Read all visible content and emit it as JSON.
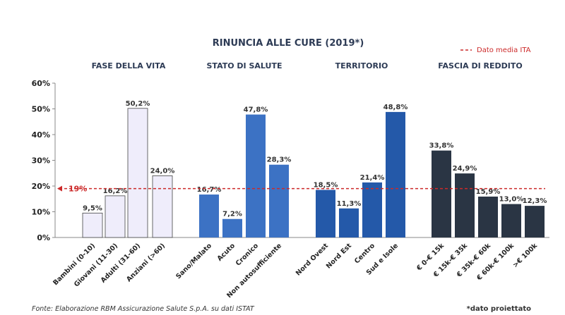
{
  "chart_data": {
    "type": "bar",
    "title": "RINUNCIA ALLE CURE (2019*)",
    "legend": {
      "label": "Dato media ITA",
      "placement": "top-right",
      "style": "dashed-red-line"
    },
    "reference_line": {
      "value": 19,
      "label": "19%",
      "color": "#cc2a2a"
    },
    "ylim": [
      0,
      60
    ],
    "yticks": [
      "0%",
      "10%",
      "20%",
      "30%",
      "40%",
      "50%",
      "60%"
    ],
    "unit": "%",
    "groups": [
      {
        "name": "FASE DELLA VITA",
        "color": "#efedfb",
        "categories": [
          "Bambini (0-10)",
          "Giovani (11-30)",
          "Adulti (31-60)",
          "Anziani (>60)"
        ],
        "values": [
          9.5,
          16.2,
          50.2,
          24.0
        ],
        "labels": [
          "9,5%",
          "16,2%",
          "50,2%",
          "24,0%"
        ]
      },
      {
        "name": "STATO DI SALUTE",
        "color": "#3c72c4",
        "categories": [
          "Sano/Malato",
          "Acuto",
          "Cronico",
          "Non autosufficiente"
        ],
        "values": [
          16.7,
          7.2,
          47.8,
          28.3
        ],
        "labels": [
          "16,7%",
          "7,2%",
          "47,8%",
          "28,3%"
        ]
      },
      {
        "name": "TERRITORIO",
        "color": "#2459a9",
        "categories": [
          "Nord Ovest",
          "Nord Est",
          "Centro",
          "Sud e Isole"
        ],
        "values": [
          18.5,
          11.3,
          21.4,
          48.8
        ],
        "labels": [
          "18,5%",
          "11,3%",
          "21,4%",
          "48,8%"
        ]
      },
      {
        "name": "FASCIA DI REDDITO",
        "color": "#2a3544",
        "categories": [
          "€ 0-€ 15k",
          "€ 15k-€ 35k",
          "€ 35k-€ 60k",
          "€ 60k-€ 100k",
          ">€ 100k"
        ],
        "values": [
          33.8,
          24.9,
          15.9,
          13.0,
          12.3
        ],
        "labels": [
          "33,8%",
          "24,9%",
          "15,9%",
          "13,0%",
          "12,3%"
        ]
      }
    ]
  },
  "footer": {
    "source": "Fonte: Elaborazione RBM Assicurazione Salute S.p.A. su dati ISTAT",
    "note": "*dato proiettato"
  }
}
